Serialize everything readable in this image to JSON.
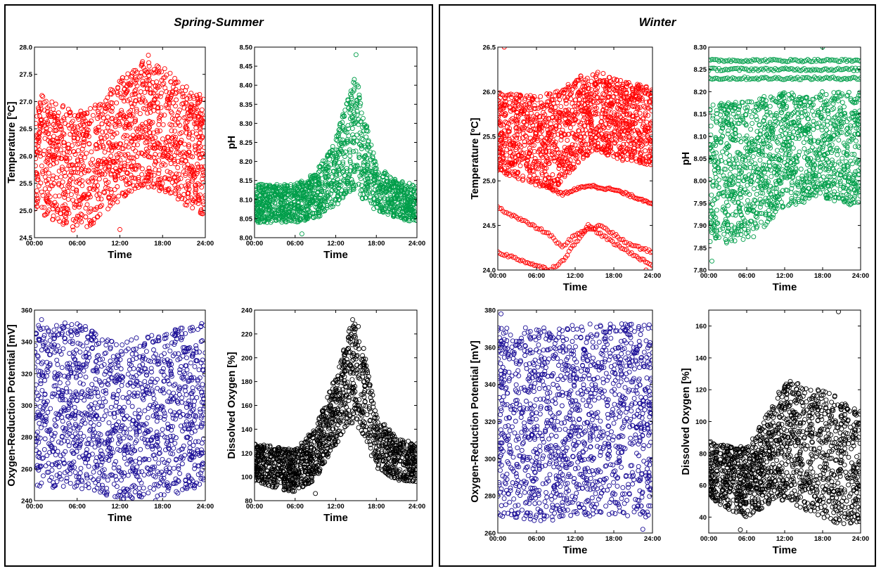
{
  "panels": [
    {
      "title": "Spring-Summer"
    },
    {
      "title": "Winter"
    }
  ],
  "chart_data": [
    {
      "panel": "Spring-Summer",
      "type": "scatter",
      "title": "",
      "xlabel": "Time",
      "ylabel": "Temperature [ºC]",
      "xticks": [
        "00:00",
        "06:00",
        "12:00",
        "18:00",
        "24:00"
      ],
      "xlim": [
        0,
        24
      ],
      "ylim": [
        24.5,
        28.0
      ],
      "yticks": [
        "24.5",
        "25.0",
        "25.5",
        "26.0",
        "26.5",
        "27.0",
        "27.5",
        "28.0"
      ],
      "color": "#ff0000",
      "marker": "open-circle",
      "profile": {
        "x": [
          0,
          3,
          6,
          9,
          12,
          15,
          18,
          21,
          24
        ],
        "center": [
          26.1,
          25.9,
          25.7,
          25.9,
          26.3,
          26.6,
          26.5,
          26.2,
          26.0
        ],
        "spread": [
          1.1,
          1.1,
          1.1,
          1.1,
          1.1,
          1.15,
          1.15,
          1.1,
          1.1
        ]
      },
      "annotation_points": [
        {
          "x": 12.0,
          "y": 24.65
        },
        {
          "x": 16.0,
          "y": 27.85
        }
      ]
    },
    {
      "panel": "Spring-Summer",
      "type": "scatter",
      "title": "",
      "xlabel": "Time",
      "ylabel": "pH",
      "xticks": [
        "00:00",
        "06:00",
        "12:00",
        "18:00",
        "24:00"
      ],
      "xlim": [
        0,
        24
      ],
      "ylim": [
        8.0,
        8.5
      ],
      "yticks": [
        "8.00",
        "8.05",
        "8.10",
        "8.15",
        "8.20",
        "8.25",
        "8.30",
        "8.35",
        "8.40",
        "8.45",
        "8.50"
      ],
      "color": "#009e4a",
      "marker": "open-circle",
      "profile": {
        "x": [
          0,
          3,
          6,
          9,
          12,
          14,
          15,
          16,
          18,
          21,
          24
        ],
        "center": [
          8.09,
          8.09,
          8.09,
          8.11,
          8.17,
          8.25,
          8.28,
          8.22,
          8.13,
          8.1,
          8.09
        ],
        "spread": [
          0.05,
          0.05,
          0.05,
          0.06,
          0.09,
          0.13,
          0.15,
          0.12,
          0.06,
          0.05,
          0.05
        ]
      },
      "annotation_points": [
        {
          "x": 15.0,
          "y": 8.48
        },
        {
          "x": 7.0,
          "y": 8.01
        }
      ]
    },
    {
      "panel": "Spring-Summer",
      "type": "scatter",
      "title": "",
      "xlabel": "Time",
      "ylabel": "Oxygen-Reduction Potential [mV]",
      "xticks": [
        "00:00",
        "06:00",
        "12:00",
        "18:00",
        "24:00"
      ],
      "xlim": [
        0,
        24
      ],
      "ylim": [
        240,
        360
      ],
      "yticks": [
        "240",
        "260",
        "280",
        "300",
        "320",
        "340",
        "360"
      ],
      "color": "#1a0d96",
      "marker": "open-circle",
      "profile": {
        "x": [
          0,
          6,
          12,
          18,
          24
        ],
        "center": [
          300,
          300,
          290,
          295,
          300
        ],
        "spread": [
          52,
          52,
          50,
          52,
          52
        ]
      },
      "annotation_points": [
        {
          "x": 1.0,
          "y": 354
        },
        {
          "x": 17.0,
          "y": 240
        }
      ]
    },
    {
      "panel": "Spring-Summer",
      "type": "scatter",
      "title": "",
      "xlabel": "Time",
      "ylabel": "Dissolved Oxygen [%]",
      "xticks": [
        "00:00",
        "06:00",
        "12:00",
        "18:00",
        "24:00"
      ],
      "xlim": [
        0,
        24
      ],
      "ylim": [
        80,
        240
      ],
      "yticks": [
        "80",
        "100",
        "120",
        "140",
        "160",
        "180",
        "200",
        "220",
        "240"
      ],
      "color": "#000000",
      "marker": "open-circle",
      "profile": {
        "x": [
          0,
          3,
          6,
          9,
          12,
          14,
          15,
          16,
          18,
          21,
          24
        ],
        "center": [
          112,
          108,
          105,
          120,
          155,
          185,
          190,
          175,
          130,
          115,
          112
        ],
        "spread": [
          16,
          18,
          18,
          22,
          30,
          40,
          45,
          40,
          22,
          18,
          16
        ]
      },
      "annotation_points": [
        {
          "x": 14.5,
          "y": 232
        },
        {
          "x": 9.0,
          "y": 86
        }
      ]
    },
    {
      "panel": "Winter",
      "type": "scatter",
      "title": "",
      "xlabel": "Time",
      "ylabel": "Temperature [ºC]",
      "xticks": [
        "00:00",
        "06:00",
        "12:00",
        "18:00",
        "24:00"
      ],
      "xlim": [
        0,
        24
      ],
      "ylim": [
        24.0,
        26.5
      ],
      "yticks": [
        "24.0",
        "24.5",
        "25.0",
        "25.5",
        "26.0",
        "26.5"
      ],
      "color": "#ff0000",
      "marker": "open-circle",
      "profile": {
        "x": [
          0,
          6,
          9,
          12,
          15,
          18,
          24
        ],
        "center": [
          25.55,
          25.45,
          25.45,
          25.65,
          25.8,
          25.7,
          25.6
        ],
        "spread": [
          0.45,
          0.5,
          0.55,
          0.5,
          0.45,
          0.45,
          0.45
        ]
      },
      "extra_lines": [
        {
          "x": [
            0,
            4,
            8,
            10,
            12,
            16,
            20,
            24
          ],
          "y": [
            24.7,
            24.55,
            24.4,
            24.25,
            24.4,
            24.5,
            24.3,
            24.2
          ]
        },
        {
          "x": [
            0,
            4,
            8,
            10,
            14,
            18,
            24
          ],
          "y": [
            24.2,
            24.1,
            24.0,
            24.1,
            24.5,
            24.3,
            24.05
          ]
        },
        {
          "x": [
            6,
            10,
            14,
            18,
            24
          ],
          "y": [
            25.0,
            24.85,
            24.95,
            24.9,
            24.75
          ]
        }
      ],
      "annotation_points": [
        {
          "x": 1.0,
          "y": 26.5
        },
        {
          "x": 23.0,
          "y": 24.0
        }
      ]
    },
    {
      "panel": "Winter",
      "type": "scatter",
      "title": "",
      "xlabel": "Time",
      "ylabel": "pH",
      "xticks": [
        "00:00",
        "06:00",
        "12:00",
        "18:00",
        "24:00"
      ],
      "xlim": [
        0,
        24
      ],
      "ylim": [
        7.8,
        8.3
      ],
      "yticks": [
        "7.80",
        "7.85",
        "7.90",
        "7.95",
        "8.00",
        "8.05",
        "8.10",
        "8.15",
        "8.20",
        "8.25",
        "8.30"
      ],
      "color": "#009e4a",
      "marker": "open-circle",
      "profile": {
        "x": [
          0,
          6,
          12,
          18,
          24
        ],
        "center": [
          8.02,
          8.02,
          8.07,
          8.08,
          8.07
        ],
        "spread": [
          0.16,
          0.16,
          0.13,
          0.12,
          0.13
        ]
      },
      "extra_lines": [
        {
          "x": [
            0,
            24
          ],
          "y": [
            8.27,
            8.27
          ]
        },
        {
          "x": [
            0,
            24
          ],
          "y": [
            8.25,
            8.25
          ]
        },
        {
          "x": [
            0,
            24
          ],
          "y": [
            8.23,
            8.23
          ]
        }
      ],
      "annotation_points": [
        {
          "x": 18.0,
          "y": 8.3
        },
        {
          "x": 0.5,
          "y": 7.82
        }
      ]
    },
    {
      "panel": "Winter",
      "type": "scatter",
      "title": "",
      "xlabel": "Time",
      "ylabel": "Oxygen-Reduction Potential [mV]",
      "xticks": [
        "00:00",
        "06:00",
        "12:00",
        "18:00",
        "24:00"
      ],
      "xlim": [
        0,
        24
      ],
      "ylim": [
        260,
        380
      ],
      "yticks": [
        "260",
        "280",
        "300",
        "320",
        "340",
        "360",
        "380"
      ],
      "color": "#1a0d96",
      "marker": "open-circle",
      "profile": {
        "x": [
          0,
          6,
          12,
          18,
          24
        ],
        "center": [
          320,
          318,
          320,
          322,
          320
        ],
        "spread": [
          52,
          52,
          52,
          52,
          52
        ]
      },
      "annotation_points": [
        {
          "x": 0.5,
          "y": 378
        },
        {
          "x": 22.5,
          "y": 262
        }
      ]
    },
    {
      "panel": "Winter",
      "type": "scatter",
      "title": "",
      "xlabel": "Time",
      "ylabel": "Dissolved Oxygen [%]",
      "xticks": [
        "00:00",
        "06:00",
        "12:00",
        "18:00",
        "24:00"
      ],
      "xlim": [
        0,
        24
      ],
      "ylim": [
        30,
        170
      ],
      "yticks": [
        "40",
        "60",
        "80",
        "100",
        "120",
        "140",
        "160"
      ],
      "color": "#000000",
      "marker": "open-circle",
      "profile": {
        "x": [
          0,
          3,
          6,
          9,
          12,
          15,
          18,
          21,
          24
        ],
        "center": [
          70,
          65,
          62,
          75,
          88,
          85,
          80,
          75,
          72
        ],
        "spread": [
          18,
          20,
          22,
          28,
          38,
          40,
          40,
          40,
          35
        ]
      },
      "annotation_points": [
        {
          "x": 20.5,
          "y": 169
        },
        {
          "x": 5.0,
          "y": 32
        }
      ]
    }
  ]
}
